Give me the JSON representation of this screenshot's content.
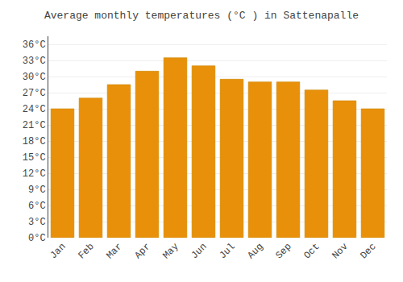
{
  "chart_data": {
    "type": "bar",
    "title": "Average monthly temperatures (°C ) in Sattenapalle",
    "categories": [
      "Jan",
      "Feb",
      "Mar",
      "Apr",
      "May",
      "Jun",
      "Jul",
      "Aug",
      "Sep",
      "Oct",
      "Nov",
      "Dec"
    ],
    "values": [
      24,
      26,
      28.5,
      31,
      33.5,
      32,
      29.5,
      29,
      29,
      27.5,
      25.5,
      24
    ],
    "color": "#E8900A",
    "ylim": [
      0,
      37.5
    ],
    "yticks": [
      {
        "value": 0,
        "label": "0°C"
      },
      {
        "value": 3,
        "label": "3°C"
      },
      {
        "value": 6,
        "label": "6°C"
      },
      {
        "value": 9,
        "label": "9°C"
      },
      {
        "value": 12,
        "label": "12°C"
      },
      {
        "value": 15,
        "label": "15°C"
      },
      {
        "value": 18,
        "label": "18°C"
      },
      {
        "value": 21,
        "label": "21°C"
      },
      {
        "value": 24,
        "label": "24°C"
      },
      {
        "value": 27,
        "label": "27°C"
      },
      {
        "value": 30,
        "label": "30°C"
      },
      {
        "value": 33,
        "label": "33°C"
      },
      {
        "value": 36,
        "label": "36°C"
      }
    ],
    "grid": true
  }
}
